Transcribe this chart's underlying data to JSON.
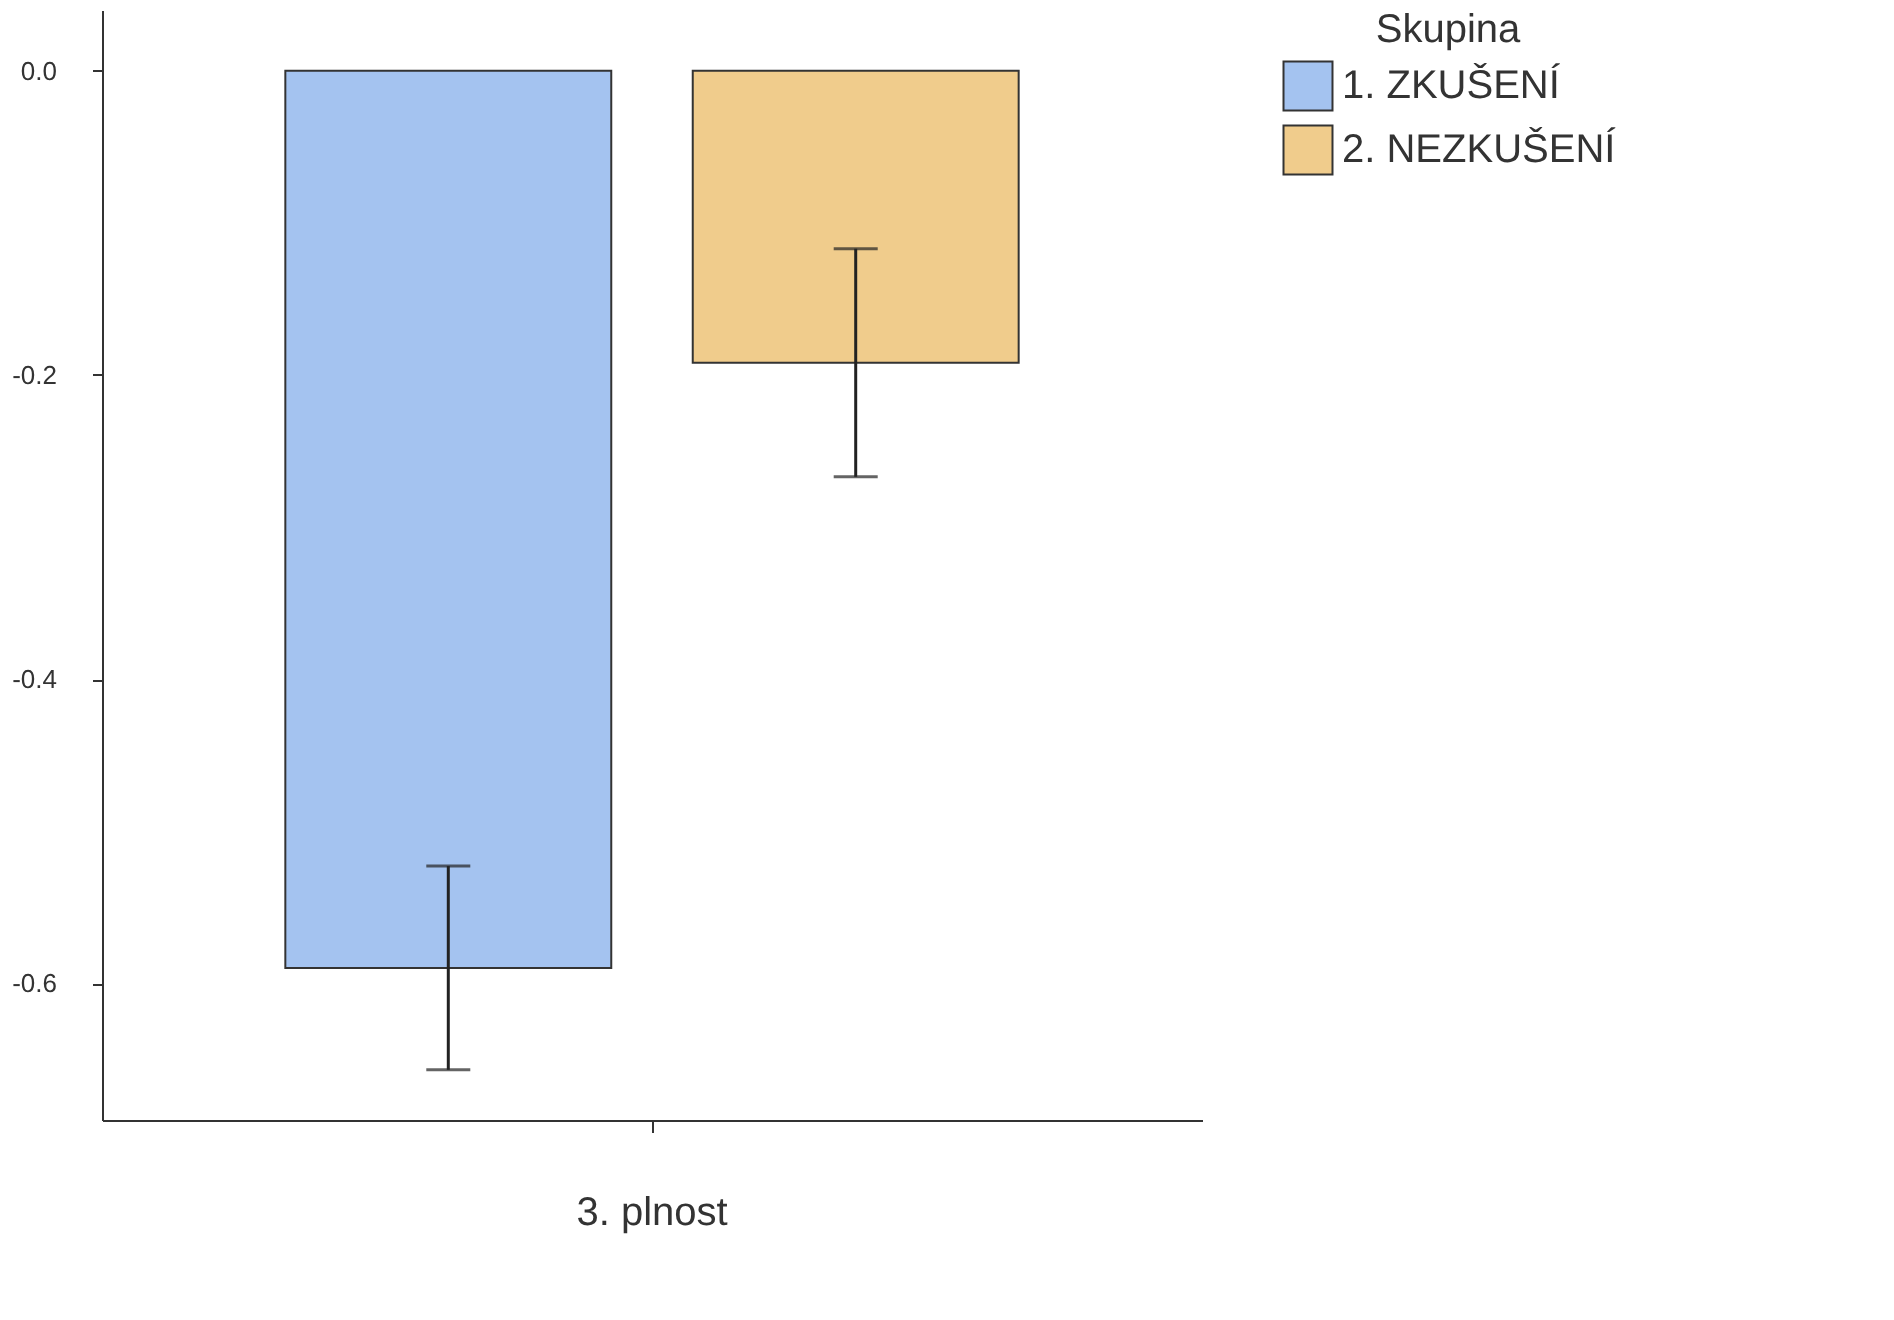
{
  "chart_data": {
    "type": "bar",
    "categories": [
      "3. plnost"
    ],
    "series": [
      {
        "name": "1. ZKUŠENÍ",
        "color": "#a4c3f0",
        "values": [
          -0.59
        ],
        "errors": [
          0.067
        ]
      },
      {
        "name": "2. NEZKUŠENÍ",
        "color": "#f0cc8c",
        "values": [
          -0.192
        ],
        "errors": [
          0.075
        ]
      }
    ],
    "legend_title": "Skupina",
    "legend": "right",
    "grid": false,
    "ylim": [
      -0.69,
      0.04
    ],
    "yticks": [
      {
        "value": 0,
        "label": "0.0"
      },
      {
        "value": -0.2,
        "label": "-0.2"
      },
      {
        "value": -0.4,
        "label": "-0.4"
      },
      {
        "value": -0.6,
        "label": "-0.6"
      }
    ]
  }
}
